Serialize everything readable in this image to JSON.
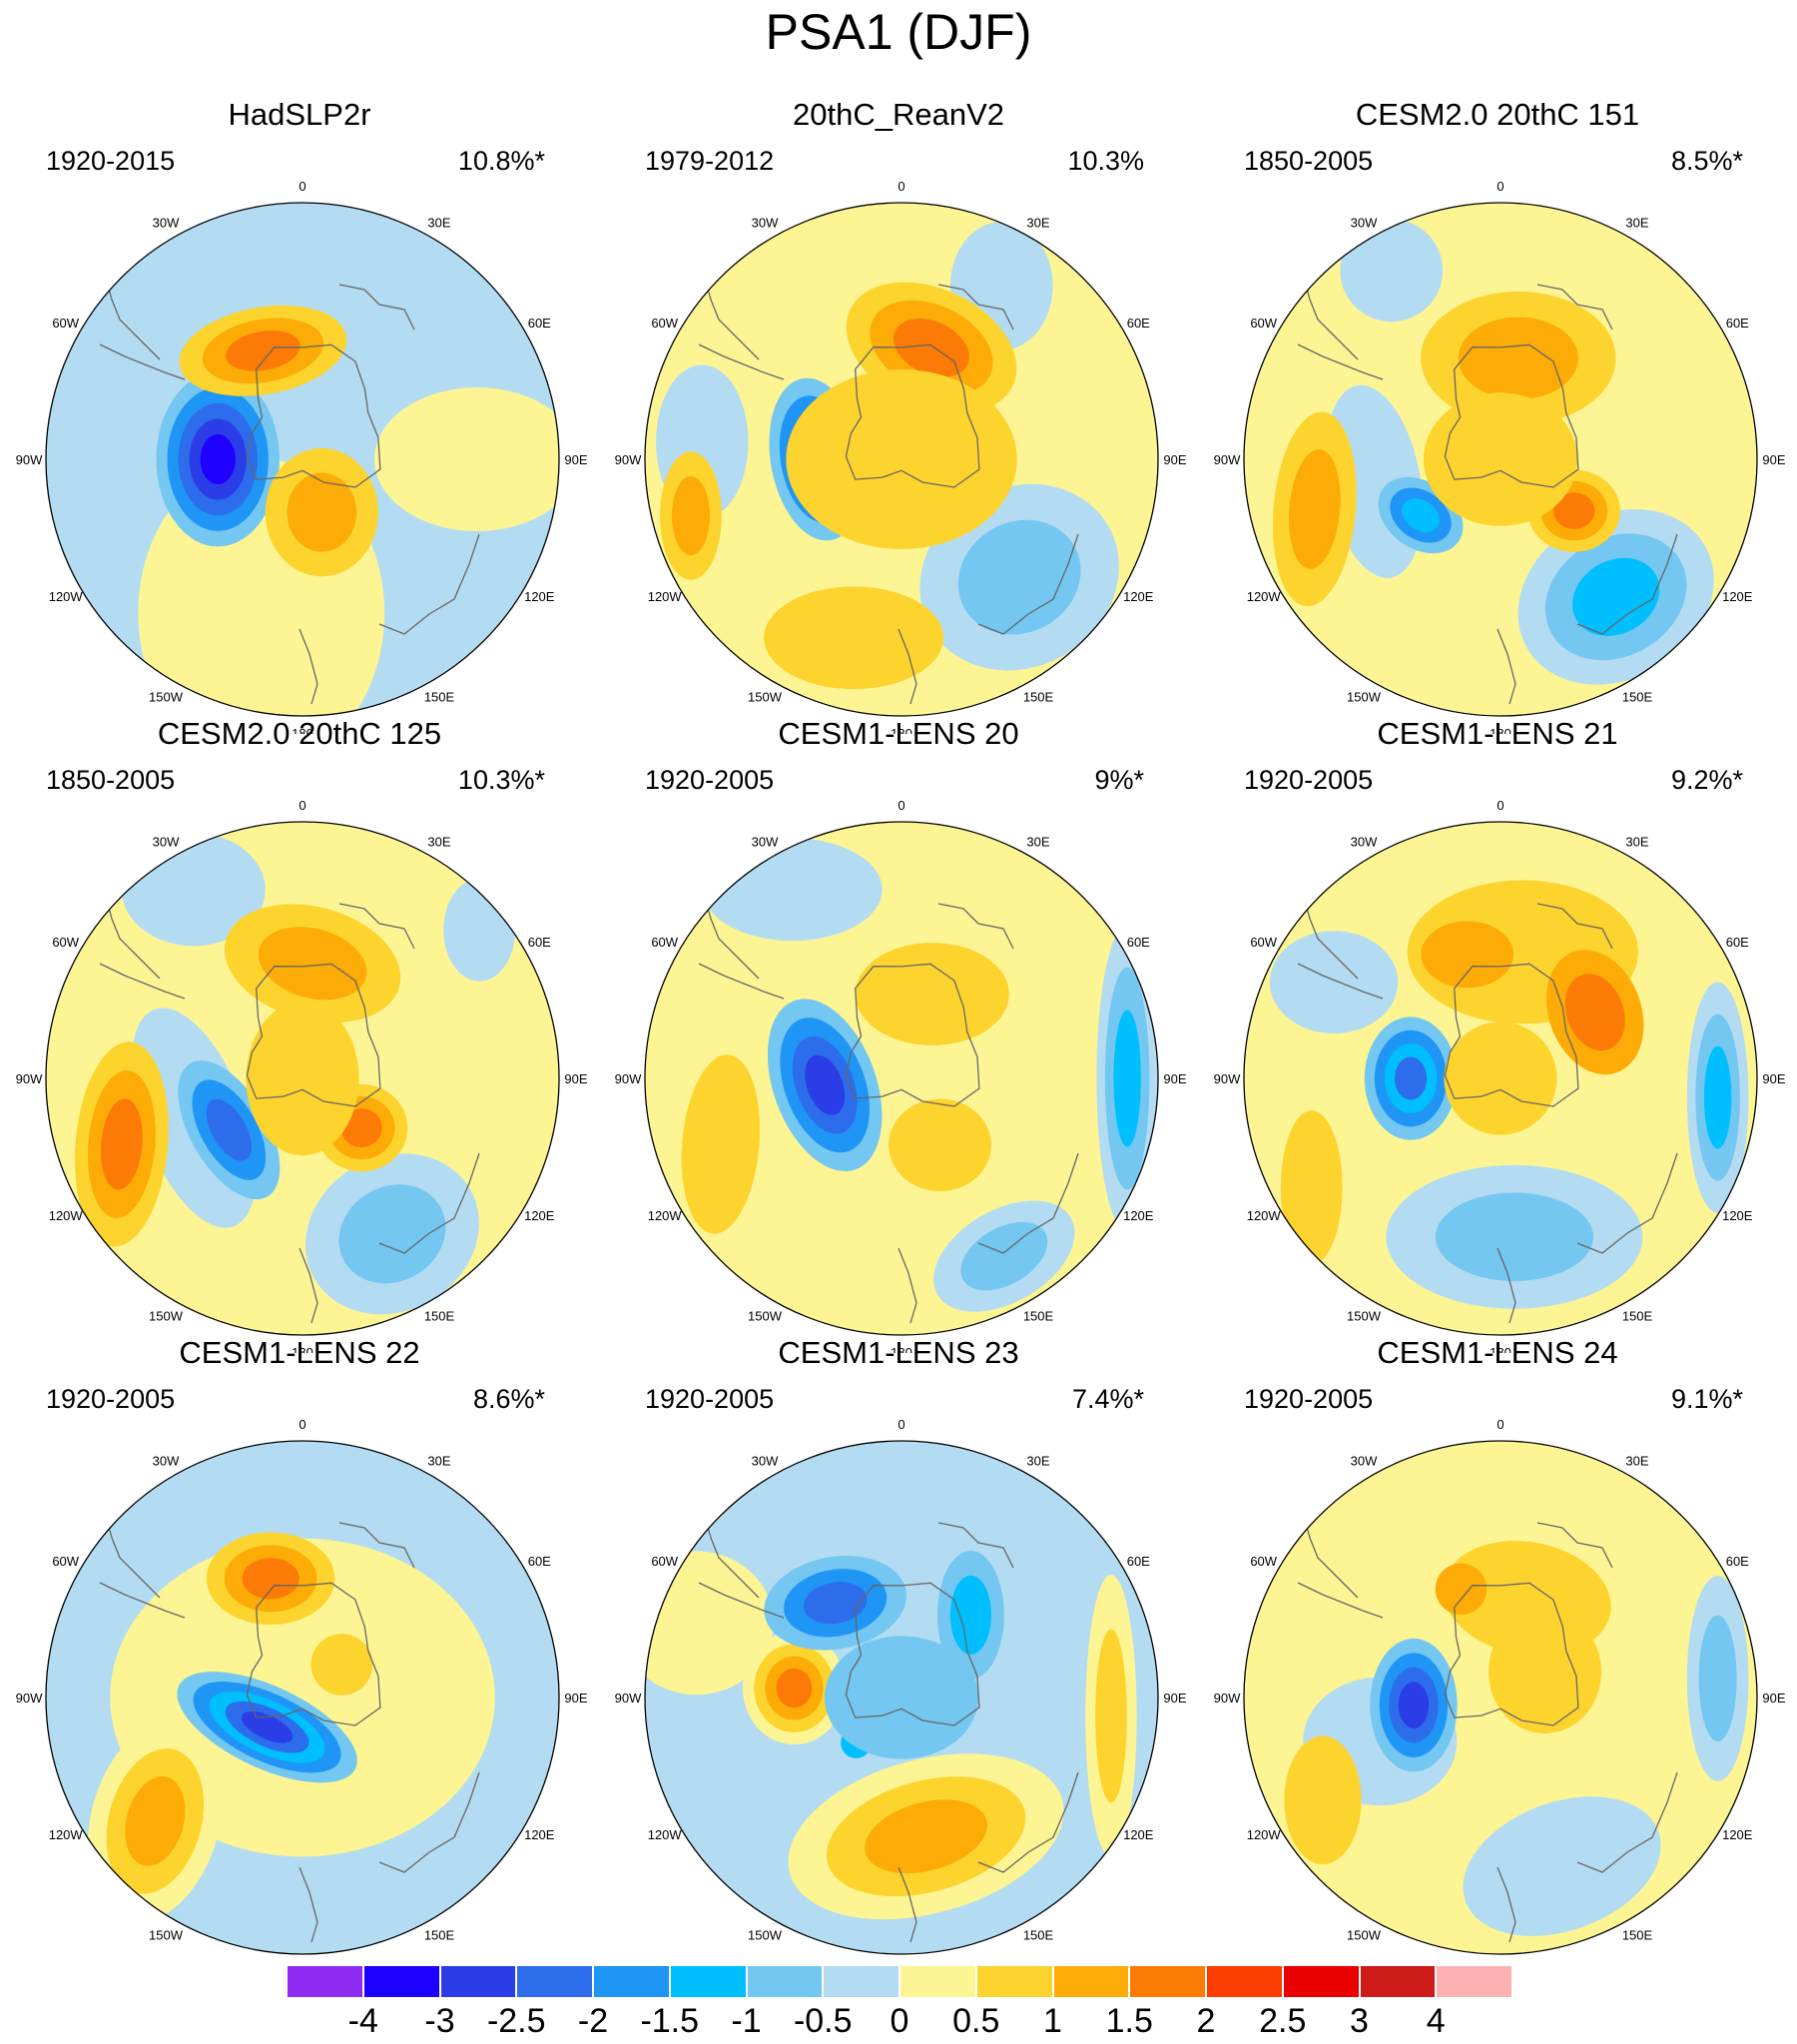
{
  "figure": {
    "title": "PSA1 (DJF)"
  },
  "lon_labels": [
    "0",
    "30E",
    "60E",
    "90E",
    "120E",
    "150E",
    "180",
    "150W",
    "120W",
    "90W",
    "60W",
    "30W"
  ],
  "colorbar": {
    "colors": [
      "#8f2bf0",
      "#1e00ff",
      "#2a3de6",
      "#2d6cea",
      "#1f95f5",
      "#00bfff",
      "#74c7f0",
      "#b3dcf2",
      "#fdf593",
      "#fdd32e",
      "#fcab07",
      "#fc7a06",
      "#fd3c00",
      "#eb0000",
      "#cf1a1a",
      "#fdb2b2"
    ],
    "labels": [
      "-4",
      "-3",
      "-2.5",
      "-2",
      "-1.5",
      "-1",
      "-0.5",
      "0",
      "0.5",
      "1",
      "1.5",
      "2",
      "2.5",
      "3",
      "4"
    ]
  },
  "panels": [
    {
      "title": "HadSLP2r",
      "period": "1920-2015",
      "variance": "10.8%*",
      "background": "#b3dcf2",
      "blobs": [
        {
          "lon": 195,
          "r": 0.62,
          "rx": 0.48,
          "ry": 0.6,
          "rot": 0,
          "levels": [
            "#fdf593"
          ]
        },
        {
          "lon": 90,
          "r": 0.68,
          "rx": 0.4,
          "ry": 0.28,
          "rot": 0,
          "levels": [
            "#fdf593"
          ]
        },
        {
          "lon": 270,
          "r": 0.33,
          "rx": 0.24,
          "ry": 0.34,
          "rot": 0,
          "levels": [
            "#74c7f0",
            "#1f95f5",
            "#2d6cea",
            "#2a3de6",
            "#1e00ff"
          ]
        },
        {
          "lon": 340,
          "r": 0.45,
          "rx": 0.33,
          "ry": 0.17,
          "rot": -10,
          "levels": [
            "#fdd32e",
            "#fcab07",
            "#fc7a06"
          ]
        },
        {
          "lon": 160,
          "r": 0.22,
          "rx": 0.22,
          "ry": 0.25,
          "rot": 0,
          "levels": [
            "#fdd32e",
            "#fcab07"
          ]
        }
      ]
    },
    {
      "title": "20thC_ReanV2",
      "period": "1979-2012",
      "variance": "10.3%",
      "background": "#fdf593",
      "blobs": [
        {
          "lon": 135,
          "r": 0.65,
          "rx": 0.4,
          "ry": 0.35,
          "rot": -30,
          "levels": [
            "#b3dcf2",
            "#74c7f0"
          ]
        },
        {
          "lon": 30,
          "r": 0.78,
          "rx": 0.2,
          "ry": 0.25,
          "rot": 0,
          "levels": [
            "#b3dcf2"
          ]
        },
        {
          "lon": 275,
          "r": 0.78,
          "rx": 0.18,
          "ry": 0.3,
          "rot": 0,
          "levels": [
            "#b3dcf2"
          ]
        },
        {
          "lon": 195,
          "r": 0.72,
          "rx": 0.35,
          "ry": 0.2,
          "rot": 0,
          "levels": [
            "#fdd32e"
          ]
        },
        {
          "lon": 255,
          "r": 0.85,
          "rx": 0.12,
          "ry": 0.25,
          "rot": 0,
          "levels": [
            "#fdd32e",
            "#fcab07"
          ]
        },
        {
          "lon": 270,
          "r": 0.33,
          "rx": 0.18,
          "ry": 0.32,
          "rot": -10,
          "levels": [
            "#74c7f0",
            "#1f95f5",
            "#2d6cea",
            "#2a3de6"
          ]
        },
        {
          "lon": 15,
          "r": 0.45,
          "rx": 0.35,
          "ry": 0.23,
          "rot": 25,
          "levels": [
            "#fdd32e",
            "#fcab07",
            "#fc7a06"
          ]
        },
        {
          "lon": 0,
          "r": 0.0,
          "rx": 0.45,
          "ry": 0.35,
          "rot": 0,
          "levels": [
            "#fdd32e"
          ]
        }
      ]
    },
    {
      "title": "CESM2.0 20thC 151",
      "period": "1850-2005",
      "variance": "8.5%*",
      "background": "#fdf593",
      "blobs": [
        {
          "lon": 140,
          "r": 0.7,
          "rx": 0.4,
          "ry": 0.32,
          "rot": -30,
          "levels": [
            "#b3dcf2",
            "#74c7f0",
            "#00bfff"
          ]
        },
        {
          "lon": 330,
          "r": 0.85,
          "rx": 0.2,
          "ry": 0.2,
          "rot": 0,
          "levels": [
            "#b3dcf2"
          ]
        },
        {
          "lon": 260,
          "r": 0.5,
          "rx": 0.18,
          "ry": 0.38,
          "rot": -10,
          "levels": [
            "#b3dcf2"
          ]
        },
        {
          "lon": 255,
          "r": 0.75,
          "rx": 0.16,
          "ry": 0.38,
          "rot": 5,
          "levels": [
            "#fdd32e",
            "#fcab07"
          ]
        },
        {
          "lon": 235,
          "r": 0.38,
          "rx": 0.18,
          "ry": 0.13,
          "rot": 35,
          "levels": [
            "#74c7f0",
            "#1f95f5",
            "#00bfff"
          ]
        },
        {
          "lon": 10,
          "r": 0.4,
          "rx": 0.38,
          "ry": 0.26,
          "rot": 0,
          "levels": [
            "#fdd32e",
            "#fcab07"
          ]
        },
        {
          "lon": 125,
          "r": 0.35,
          "rx": 0.18,
          "ry": 0.16,
          "rot": 0,
          "levels": [
            "#fdd32e",
            "#fcab07",
            "#fc7a06"
          ]
        },
        {
          "lon": 0,
          "r": 0.0,
          "rx": 0.3,
          "ry": 0.26,
          "rot": 0,
          "levels": [
            "#fdd32e"
          ]
        }
      ]
    },
    {
      "title": "CESM2.0 20thC 125",
      "period": "1850-2005",
      "variance": "10.3%*",
      "background": "#fdf593",
      "blobs": [
        {
          "lon": 150,
          "r": 0.7,
          "rx": 0.35,
          "ry": 0.3,
          "rot": -30,
          "levels": [
            "#b3dcf2",
            "#74c7f0"
          ]
        },
        {
          "lon": 330,
          "r": 0.85,
          "rx": 0.28,
          "ry": 0.22,
          "rot": 0,
          "levels": [
            "#b3dcf2"
          ]
        },
        {
          "lon": 50,
          "r": 0.9,
          "rx": 0.14,
          "ry": 0.2,
          "rot": 0,
          "levels": [
            "#b3dcf2"
          ]
        },
        {
          "lon": 250,
          "r": 0.45,
          "rx": 0.2,
          "ry": 0.45,
          "rot": -20,
          "levels": [
            "#b3dcf2"
          ]
        },
        {
          "lon": 250,
          "r": 0.75,
          "rx": 0.18,
          "ry": 0.4,
          "rot": 5,
          "levels": [
            "#fdd32e",
            "#fcab07",
            "#fc7a06"
          ]
        },
        {
          "lon": 235,
          "r": 0.35,
          "rx": 0.15,
          "ry": 0.3,
          "rot": -30,
          "levels": [
            "#74c7f0",
            "#1f95f5",
            "#2d6cea"
          ]
        },
        {
          "lon": 5,
          "r": 0.45,
          "rx": 0.35,
          "ry": 0.22,
          "rot": 15,
          "levels": [
            "#fdd32e",
            "#fcab07"
          ]
        },
        {
          "lon": 130,
          "r": 0.3,
          "rx": 0.18,
          "ry": 0.17,
          "rot": 0,
          "levels": [
            "#fdd32e",
            "#fcab07",
            "#fc7a06"
          ]
        },
        {
          "lon": 0,
          "r": 0.0,
          "rx": 0.22,
          "ry": 0.3,
          "rot": 0,
          "levels": [
            "#fdd32e"
          ]
        }
      ]
    },
    {
      "title": "CESM1-LENS 20",
      "period": "1920-2005",
      "variance": "9%*",
      "background": "#fdf593",
      "blobs": [
        {
          "lon": 330,
          "r": 0.85,
          "rx": 0.35,
          "ry": 0.2,
          "rot": 0,
          "levels": [
            "#b3dcf2"
          ]
        },
        {
          "lon": 90,
          "r": 0.88,
          "rx": 0.12,
          "ry": 0.6,
          "rot": 0,
          "levels": [
            "#b3dcf2",
            "#74c7f0",
            "#00bfff"
          ]
        },
        {
          "lon": 150,
          "r": 0.8,
          "rx": 0.3,
          "ry": 0.18,
          "rot": -30,
          "levels": [
            "#b3dcf2",
            "#74c7f0"
          ]
        },
        {
          "lon": 265,
          "r": 0.3,
          "rx": 0.2,
          "ry": 0.35,
          "rot": -20,
          "levels": [
            "#74c7f0",
            "#1f95f5",
            "#2d6cea",
            "#2a3de6"
          ]
        },
        {
          "lon": 250,
          "r": 0.75,
          "rx": 0.15,
          "ry": 0.35,
          "rot": 5,
          "levels": [
            "#fdd32e"
          ]
        },
        {
          "lon": 20,
          "r": 0.35,
          "rx": 0.3,
          "ry": 0.2,
          "rot": 0,
          "levels": [
            "#fdd32e"
          ]
        },
        {
          "lon": 150,
          "r": 0.3,
          "rx": 0.2,
          "ry": 0.18,
          "rot": 0,
          "levels": [
            "#fdd32e"
          ]
        }
      ]
    },
    {
      "title": "CESM1-LENS 21",
      "period": "1920-2005",
      "variance": "9.2%*",
      "background": "#fdf593",
      "blobs": [
        {
          "lon": 175,
          "r": 0.62,
          "rx": 0.5,
          "ry": 0.28,
          "rot": 0,
          "levels": [
            "#b3dcf2",
            "#74c7f0"
          ]
        },
        {
          "lon": 95,
          "r": 0.85,
          "rx": 0.12,
          "ry": 0.45,
          "rot": 0,
          "levels": [
            "#b3dcf2",
            "#74c7f0",
            "#00bfff"
          ]
        },
        {
          "lon": 300,
          "r": 0.75,
          "rx": 0.25,
          "ry": 0.2,
          "rot": 0,
          "levels": [
            "#b3dcf2"
          ]
        },
        {
          "lon": 240,
          "r": 0.85,
          "rx": 0.12,
          "ry": 0.3,
          "rot": 0,
          "levels": [
            "#fdd32e"
          ]
        },
        {
          "lon": 270,
          "r": 0.35,
          "rx": 0.18,
          "ry": 0.24,
          "rot": 0,
          "levels": [
            "#74c7f0",
            "#1f95f5",
            "#00bfff",
            "#2d6cea"
          ]
        },
        {
          "lon": 10,
          "r": 0.5,
          "rx": 0.45,
          "ry": 0.28,
          "rot": 0,
          "levels": [
            "#fdd32e"
          ]
        },
        {
          "lon": 345,
          "r": 0.5,
          "rx": 0.18,
          "ry": 0.13,
          "rot": 0,
          "levels": [
            "#fcab07"
          ]
        },
        {
          "lon": 55,
          "r": 0.45,
          "rx": 0.18,
          "ry": 0.25,
          "rot": -20,
          "levels": [
            "#fcab07",
            "#fc7a06"
          ]
        },
        {
          "lon": 0,
          "r": 0.0,
          "rx": 0.22,
          "ry": 0.22,
          "rot": 0,
          "levels": [
            "#fdd32e"
          ]
        }
      ]
    },
    {
      "title": "CESM1-LENS 22",
      "period": "1920-2005",
      "variance": "8.6%*",
      "background": "#b3dcf2",
      "blobs": [
        {
          "lon": 0,
          "r": 0.0,
          "rx": 0.75,
          "ry": 0.62,
          "rot": 0,
          "levels": [
            "#fdf593"
          ]
        },
        {
          "lon": 230,
          "r": 0.75,
          "rx": 0.25,
          "ry": 0.4,
          "rot": 15,
          "levels": [
            "#fdf593",
            "#fdd32e",
            "#fcab07"
          ]
        },
        {
          "lon": 345,
          "r": 0.48,
          "rx": 0.25,
          "ry": 0.18,
          "rot": 0,
          "levels": [
            "#fdd32e",
            "#fcab07",
            "#fc7a06"
          ]
        },
        {
          "lon": 230,
          "r": 0.18,
          "rx": 0.38,
          "ry": 0.16,
          "rot": 25,
          "levels": [
            "#74c7f0",
            "#1f95f5",
            "#00bfff",
            "#2d6cea",
            "#2a3de6"
          ]
        },
        {
          "lon": 50,
          "r": 0.2,
          "rx": 0.12,
          "ry": 0.12,
          "rot": 0,
          "levels": [
            "#fdd32e"
          ]
        }
      ]
    },
    {
      "title": "CESM1-LENS 23",
      "period": "1920-2005",
      "variance": "7.4%*",
      "background": "#b3dcf2",
      "blobs": [
        {
          "lon": 290,
          "r": 0.85,
          "rx": 0.3,
          "ry": 0.28,
          "rot": 0,
          "levels": [
            "#fdf593"
          ]
        },
        {
          "lon": 95,
          "r": 0.82,
          "rx": 0.1,
          "ry": 0.55,
          "rot": 0,
          "levels": [
            "#fdf593",
            "#fdd32e"
          ]
        },
        {
          "lon": 170,
          "r": 0.55,
          "rx": 0.55,
          "ry": 0.3,
          "rot": -15,
          "levels": [
            "#fdf593",
            "#fdd32e",
            "#fcab07"
          ]
        },
        {
          "lon": 275,
          "r": 0.42,
          "rx": 0.2,
          "ry": 0.22,
          "rot": 0,
          "levels": [
            "#fdf593",
            "#fdd32e",
            "#fcab07",
            "#fc7a06"
          ]
        },
        {
          "lon": 325,
          "r": 0.45,
          "rx": 0.28,
          "ry": 0.18,
          "rot": -10,
          "levels": [
            "#74c7f0",
            "#1f95f5",
            "#2d6cea"
          ]
        },
        {
          "lon": 40,
          "r": 0.42,
          "rx": 0.13,
          "ry": 0.25,
          "rot": 0,
          "levels": [
            "#74c7f0",
            "#00bfff"
          ]
        },
        {
          "lon": 225,
          "r": 0.25,
          "rx": 0.06,
          "ry": 0.06,
          "rot": 0,
          "levels": [
            "#00bfff"
          ]
        },
        {
          "lon": 0,
          "r": 0.0,
          "rx": 0.3,
          "ry": 0.24,
          "rot": 0,
          "levels": [
            "#74c7f0"
          ]
        }
      ]
    },
    {
      "title": "CESM1-LENS 24",
      "period": "1920-2005",
      "variance": "9.1%*",
      "background": "#fdf593",
      "blobs": [
        {
          "lon": 160,
          "r": 0.7,
          "rx": 0.4,
          "ry": 0.25,
          "rot": -20,
          "levels": [
            "#b3dcf2"
          ]
        },
        {
          "lon": 250,
          "r": 0.5,
          "rx": 0.3,
          "ry": 0.25,
          "rot": 0,
          "levels": [
            "#b3dcf2"
          ]
        },
        {
          "lon": 85,
          "r": 0.85,
          "rx": 0.12,
          "ry": 0.4,
          "rot": 0,
          "levels": [
            "#b3dcf2",
            "#74c7f0"
          ]
        },
        {
          "lon": 240,
          "r": 0.8,
          "rx": 0.15,
          "ry": 0.25,
          "rot": 0,
          "levels": [
            "#fdd32e"
          ]
        },
        {
          "lon": 265,
          "r": 0.34,
          "rx": 0.17,
          "ry": 0.26,
          "rot": 0,
          "levels": [
            "#74c7f0",
            "#1f95f5",
            "#2d6cea",
            "#2a3de6"
          ]
        },
        {
          "lon": 15,
          "r": 0.4,
          "rx": 0.33,
          "ry": 0.22,
          "rot": 10,
          "levels": [
            "#fdd32e"
          ]
        },
        {
          "lon": 340,
          "r": 0.45,
          "rx": 0.1,
          "ry": 0.1,
          "rot": 0,
          "levels": [
            "#fcab07"
          ]
        },
        {
          "lon": 60,
          "r": 0.2,
          "rx": 0.22,
          "ry": 0.24,
          "rot": 0,
          "levels": [
            "#fdd32e"
          ]
        }
      ]
    }
  ]
}
